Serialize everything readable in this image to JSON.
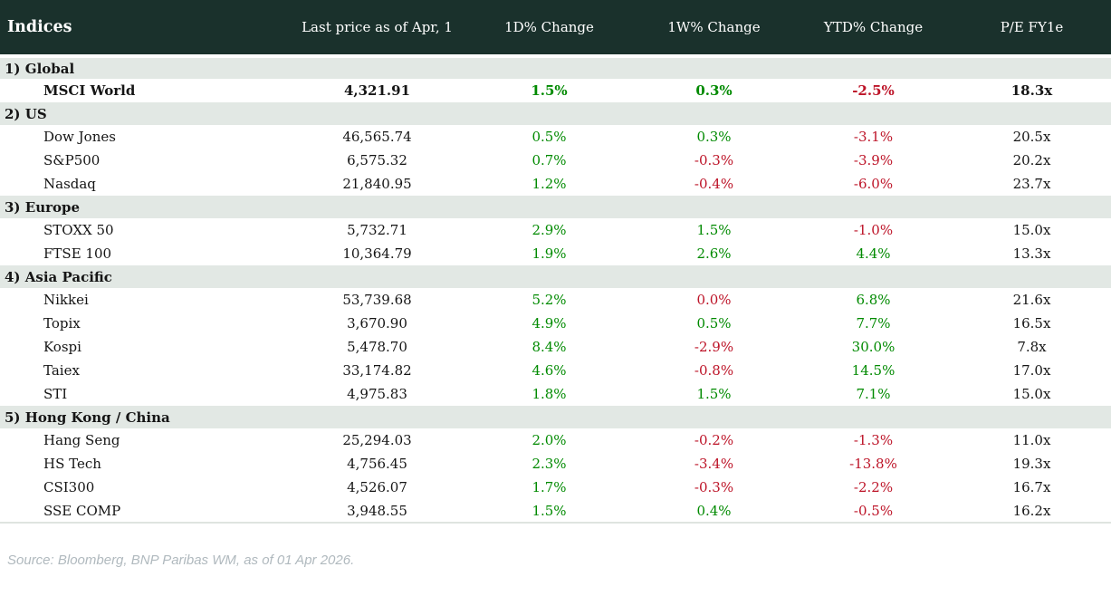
{
  "table": {
    "title": "Indices",
    "columns": [
      "Last price as of Apr, 1",
      "1D% Change",
      "1W% Change",
      "YTD% Change",
      "P/E FY1e"
    ],
    "sections": [
      {
        "label": "1) Global",
        "rows": [
          {
            "name": "MSCI World",
            "price": "4,321.91",
            "d1": {
              "v": "1.5%",
              "c": "pos"
            },
            "w1": {
              "v": "0.3%",
              "c": "pos"
            },
            "ytd": {
              "v": "-2.5%",
              "c": "neg"
            },
            "pe": "18.3x",
            "bold": true
          }
        ]
      },
      {
        "label": "2) US",
        "rows": [
          {
            "name": "Dow Jones",
            "price": "46,565.74",
            "d1": {
              "v": "0.5%",
              "c": "pos"
            },
            "w1": {
              "v": "0.3%",
              "c": "pos"
            },
            "ytd": {
              "v": "-3.1%",
              "c": "neg"
            },
            "pe": "20.5x",
            "bold": false
          },
          {
            "name": "S&P500",
            "price": "6,575.32",
            "d1": {
              "v": "0.7%",
              "c": "pos"
            },
            "w1": {
              "v": "-0.3%",
              "c": "neg"
            },
            "ytd": {
              "v": "-3.9%",
              "c": "neg"
            },
            "pe": "20.2x",
            "bold": false
          },
          {
            "name": "Nasdaq",
            "price": "21,840.95",
            "d1": {
              "v": "1.2%",
              "c": "pos"
            },
            "w1": {
              "v": "-0.4%",
              "c": "neg"
            },
            "ytd": {
              "v": "-6.0%",
              "c": "neg"
            },
            "pe": "23.7x",
            "bold": false
          }
        ]
      },
      {
        "label": "3) Europe",
        "rows": [
          {
            "name": "STOXX 50",
            "price": "5,732.71",
            "d1": {
              "v": "2.9%",
              "c": "pos"
            },
            "w1": {
              "v": "1.5%",
              "c": "pos"
            },
            "ytd": {
              "v": "-1.0%",
              "c": "neg"
            },
            "pe": "15.0x",
            "bold": false
          },
          {
            "name": "FTSE 100",
            "price": "10,364.79",
            "d1": {
              "v": "1.9%",
              "c": "pos"
            },
            "w1": {
              "v": "2.6%",
              "c": "pos"
            },
            "ytd": {
              "v": "4.4%",
              "c": "pos"
            },
            "pe": "13.3x",
            "bold": false
          }
        ]
      },
      {
        "label": "4) Asia Pacific",
        "rows": [
          {
            "name": "Nikkei",
            "price": "53,739.68",
            "d1": {
              "v": "5.2%",
              "c": "pos"
            },
            "w1": {
              "v": "0.0%",
              "c": "neg"
            },
            "ytd": {
              "v": "6.8%",
              "c": "pos"
            },
            "pe": "21.6x",
            "bold": false
          },
          {
            "name": "Topix",
            "price": "3,670.90",
            "d1": {
              "v": "4.9%",
              "c": "pos"
            },
            "w1": {
              "v": "0.5%",
              "c": "pos"
            },
            "ytd": {
              "v": "7.7%",
              "c": "pos"
            },
            "pe": "16.5x",
            "bold": false
          },
          {
            "name": "Kospi",
            "price": "5,478.70",
            "d1": {
              "v": "8.4%",
              "c": "pos"
            },
            "w1": {
              "v": "-2.9%",
              "c": "neg"
            },
            "ytd": {
              "v": "30.0%",
              "c": "pos"
            },
            "pe": "7.8x",
            "bold": false
          },
          {
            "name": "Taiex",
            "price": "33,174.82",
            "d1": {
              "v": "4.6%",
              "c": "pos"
            },
            "w1": {
              "v": "-0.8%",
              "c": "neg"
            },
            "ytd": {
              "v": "14.5%",
              "c": "pos"
            },
            "pe": "17.0x",
            "bold": false
          },
          {
            "name": "STI",
            "price": "4,975.83",
            "d1": {
              "v": "1.8%",
              "c": "pos"
            },
            "w1": {
              "v": "1.5%",
              "c": "pos"
            },
            "ytd": {
              "v": "7.1%",
              "c": "pos"
            },
            "pe": "15.0x",
            "bold": false
          }
        ]
      },
      {
        "label": "5) Hong Kong / China",
        "rows": [
          {
            "name": "Hang Seng",
            "price": "25,294.03",
            "d1": {
              "v": "2.0%",
              "c": "pos"
            },
            "w1": {
              "v": "-0.2%",
              "c": "neg"
            },
            "ytd": {
              "v": "-1.3%",
              "c": "neg"
            },
            "pe": "11.0x",
            "bold": false
          },
          {
            "name": "HS Tech",
            "price": "4,756.45",
            "d1": {
              "v": "2.3%",
              "c": "pos"
            },
            "w1": {
              "v": "-3.4%",
              "c": "neg"
            },
            "ytd": {
              "v": "-13.8%",
              "c": "neg"
            },
            "pe": "19.3x",
            "bold": false
          },
          {
            "name": "CSI300",
            "price": "4,526.07",
            "d1": {
              "v": "1.7%",
              "c": "pos"
            },
            "w1": {
              "v": "-0.3%",
              "c": "neg"
            },
            "ytd": {
              "v": "-2.2%",
              "c": "neg"
            },
            "pe": "16.7x",
            "bold": false
          },
          {
            "name": "SSE COMP",
            "price": "3,948.55",
            "d1": {
              "v": "1.5%",
              "c": "pos"
            },
            "w1": {
              "v": "0.4%",
              "c": "pos"
            },
            "ytd": {
              "v": "-0.5%",
              "c": "neg"
            },
            "pe": "16.2x",
            "bold": false
          }
        ]
      }
    ]
  },
  "footer": {
    "source": "Source: Bloomberg, BNP Paribas WM, as of 01 Apr 2026."
  },
  "colors": {
    "header_bg": "#1a312c",
    "section_bg": "#e2e8e4",
    "positive": "#008a00",
    "negative": "#bd1428",
    "footer_text": "#b0b9be"
  }
}
